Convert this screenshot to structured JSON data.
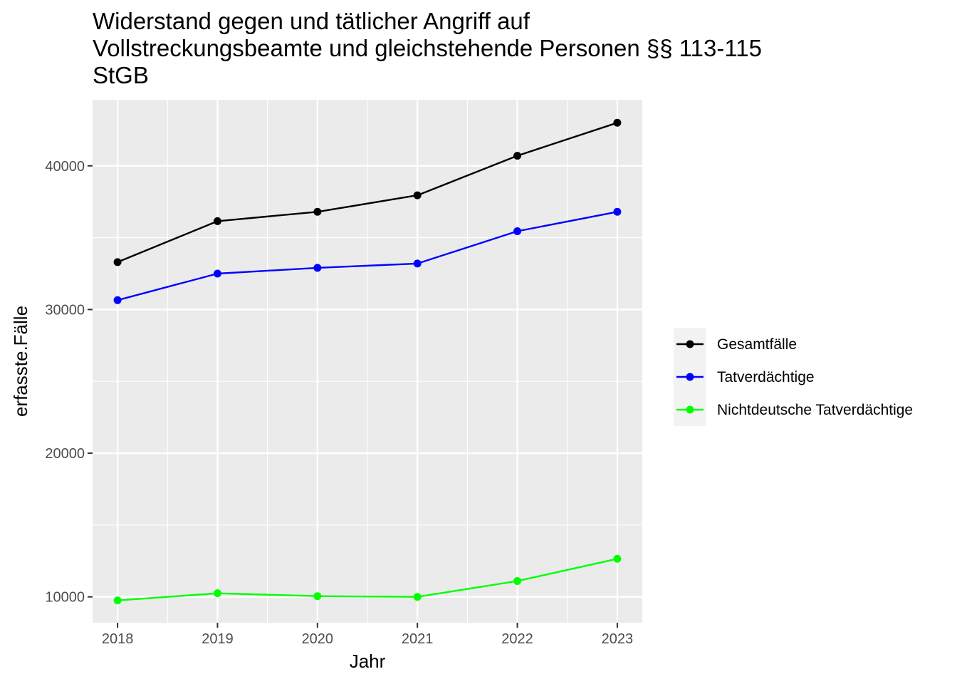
{
  "chart_data": {
    "type": "line",
    "title_lines": [
      "Widerstand gegen und tätlicher Angriff auf",
      "Vollstreckungsbeamte und gleichstehende Personen §§ 113-115",
      "StGB"
    ],
    "xlabel": "Jahr",
    "ylabel": "erfasste.Fälle",
    "x": [
      2018,
      2019,
      2020,
      2021,
      2022,
      2023
    ],
    "xlim": [
      2017.75,
      2023.25
    ],
    "ylim": [
      8200,
      44600
    ],
    "yticks": [
      10000,
      20000,
      30000,
      40000
    ],
    "grid": true,
    "legend_position": "right",
    "series": [
      {
        "name": "Gesamtfälle",
        "color": "#000000",
        "values": [
          33300,
          36150,
          36800,
          37950,
          40700,
          43000
        ]
      },
      {
        "name": "Tatverdächtige",
        "color": "#0000ff",
        "values": [
          30650,
          32500,
          32900,
          33200,
          35450,
          36800
        ]
      },
      {
        "name": "Nichtdeutsche Tatverdächtige",
        "color": "#00ff00",
        "values": [
          9750,
          10250,
          10050,
          10000,
          11100,
          12650
        ]
      }
    ]
  }
}
